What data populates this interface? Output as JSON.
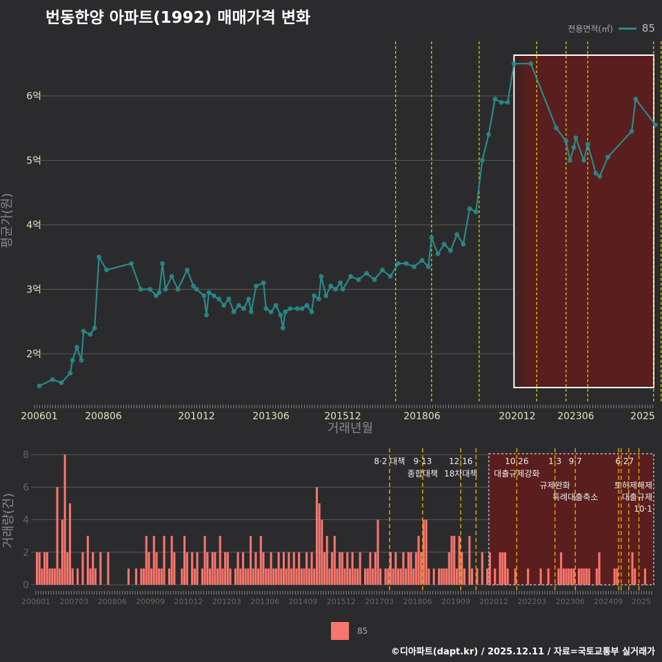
{
  "title": "번동한양 아파트(1992) 매매가격 변화",
  "legend": {
    "title": "전용면적(㎡)",
    "label": "85"
  },
  "footer": "©디아파트(dapt.kr) / 2025.12.11 / 자료=국토교통부 실거래가",
  "colors": {
    "line": "#2a8a8a",
    "bar": "#f8766d",
    "event_top": "#d4d400",
    "event_bottom": "#e6a000",
    "highlight": "#6b1f1f"
  },
  "chart_data": [
    {
      "type": "line",
      "title": "번동한양 아파트(1992) 매매가격 변화",
      "xlabel": "거래년월",
      "ylabel": "평균가(원)",
      "ylim": [
        1.4,
        6.7
      ],
      "yticks": [
        {
          "v": 2,
          "label": "2억"
        },
        {
          "v": 3,
          "label": "3억"
        },
        {
          "v": 4,
          "label": "4억"
        },
        {
          "v": 5,
          "label": "5억"
        },
        {
          "v": 6,
          "label": "6억"
        }
      ],
      "xticks": [
        "200601",
        "200806",
        "201012",
        "201306",
        "201512",
        "201806",
        "202012",
        "202306",
        "2025"
      ],
      "series": [
        {
          "name": "85",
          "x": [
            "200601",
            "200607",
            "200611",
            "200703",
            "200704",
            "200706",
            "200708",
            "200709",
            "200712",
            "200802",
            "200804",
            "200807",
            "200903",
            "200906",
            "200909",
            "200911",
            "200912",
            "201001",
            "201002",
            "201004",
            "201006",
            "201009",
            "201011",
            "201012",
            "201103",
            "201104",
            "201105",
            "201107",
            "201109",
            "201111",
            "201201",
            "201203",
            "201205",
            "201207",
            "201209",
            "201210",
            "201212",
            "201303",
            "201304",
            "201306",
            "201308",
            "201310",
            "201311",
            "201312",
            "201402",
            "201405",
            "201407",
            "201409",
            "201411",
            "201412",
            "201502",
            "201503",
            "201505",
            "201507",
            "201509",
            "201511",
            "201512",
            "201603",
            "201606",
            "201609",
            "201612",
            "201703",
            "201706",
            "201709",
            "201712",
            "201803",
            "201806",
            "201808",
            "201809",
            "201811",
            "201901",
            "201903",
            "201905",
            "201907",
            "201909",
            "201911",
            "202001",
            "202003",
            "202005",
            "202007",
            "202009",
            "202011",
            "202107",
            "202208",
            "202301",
            "202303",
            "202305",
            "202306",
            "202308",
            "202309",
            "202311",
            "202312",
            "202402",
            "202408",
            "202409",
            "202503"
          ],
          "values": [
            1.5,
            1.6,
            1.55,
            1.7,
            1.9,
            2.1,
            1.9,
            2.35,
            2.3,
            2.4,
            3.5,
            3.3,
            3.4,
            3.0,
            3.0,
            2.9,
            2.95,
            3.4,
            3.0,
            3.2,
            3.0,
            3.3,
            3.05,
            3.0,
            2.9,
            2.6,
            2.95,
            2.9,
            2.85,
            2.75,
            2.85,
            2.65,
            2.75,
            2.7,
            2.85,
            2.65,
            3.05,
            3.1,
            2.7,
            2.65,
            2.75,
            2.6,
            2.4,
            2.65,
            2.7,
            2.7,
            2.7,
            2.75,
            2.65,
            2.9,
            2.85,
            3.2,
            2.9,
            3.05,
            3.0,
            3.1,
            3.0,
            3.2,
            3.15,
            3.25,
            3.15,
            3.3,
            3.2,
            3.4,
            3.4,
            3.35,
            3.45,
            3.35,
            3.8,
            3.55,
            3.7,
            3.6,
            3.85,
            3.7,
            4.25,
            4.2,
            5.0,
            5.4,
            5.95,
            5.9,
            5.9,
            6.5,
            6.5,
            5.5,
            5.3,
            5.0,
            5.2,
            5.35,
            5.0,
            5.25,
            4.8,
            4.75,
            5.05,
            5.45,
            5.95,
            5.55
          ]
        }
      ],
      "highlight": {
        "from": "202011",
        "to": "202512"
      },
      "events": [
        "201708",
        "201809",
        "201912",
        "202110",
        "202301",
        "202309",
        "202502",
        "202506",
        "202510"
      ]
    },
    {
      "type": "bar",
      "ylabel": "거래량(건)",
      "ylim": [
        0,
        8
      ],
      "yticks": [
        0,
        2,
        4,
        6,
        8
      ],
      "start": "200601",
      "xticks": [
        "200601",
        "200703",
        "200806",
        "200909",
        "201012",
        "201203",
        "201306",
        "201409",
        "201512",
        "201703",
        "201806",
        "201909",
        "202012",
        "202203",
        "202306",
        "202409",
        "2025"
      ],
      "series": [
        {
          "name": "85",
          "values": [
            2,
            2,
            1,
            2,
            2,
            1,
            1,
            1,
            6,
            1,
            4,
            8,
            2,
            5,
            1,
            0,
            1,
            0,
            2,
            0,
            3,
            1,
            2,
            1,
            0,
            2,
            0,
            0,
            2,
            0,
            0,
            0,
            0,
            0,
            0,
            0,
            1,
            0,
            0,
            1,
            0,
            1,
            1,
            3,
            2,
            1,
            3,
            2,
            1,
            1,
            3,
            0,
            1,
            3,
            2,
            0,
            0,
            1,
            3,
            2,
            0,
            2,
            1,
            2,
            0,
            1,
            3,
            2,
            1,
            2,
            2,
            1,
            3,
            1,
            2,
            2,
            1,
            0,
            1,
            2,
            1,
            2,
            1,
            1,
            3,
            1,
            2,
            1,
            3,
            2,
            1,
            1,
            2,
            1,
            1,
            2,
            1,
            2,
            1,
            2,
            1,
            2,
            1,
            2,
            1,
            1,
            2,
            1,
            2,
            1,
            6,
            5,
            4,
            2,
            3,
            1,
            2,
            3,
            1,
            2,
            2,
            1,
            2,
            1,
            2,
            1,
            1,
            2,
            0,
            1,
            1,
            2,
            1,
            2,
            4,
            1,
            0,
            1,
            1,
            2,
            1,
            2,
            1,
            1,
            2,
            1,
            2,
            2,
            1,
            2,
            3,
            2,
            4,
            4,
            1,
            0,
            1,
            0,
            1,
            1,
            1,
            1,
            2,
            3,
            3,
            1,
            3,
            2,
            1,
            0,
            3,
            1,
            0,
            1,
            0,
            2,
            0,
            1,
            2,
            0,
            1,
            0,
            2,
            2,
            2,
            1,
            0,
            0,
            1,
            0,
            0,
            0,
            0,
            1,
            0,
            0,
            0,
            0,
            1,
            0,
            0,
            1,
            0,
            0,
            0,
            1,
            2,
            1,
            1,
            1,
            1,
            1,
            0,
            1,
            1,
            1,
            1,
            1,
            0,
            0,
            1,
            2,
            0,
            0,
            0,
            0,
            0,
            1,
            1,
            0,
            0,
            0,
            0,
            0,
            2,
            1,
            0,
            0,
            0,
            1
          ]
        }
      ],
      "highlight": {
        "from": "202011",
        "to": "202512"
      },
      "events": [
        {
          "month": "201708",
          "date": "8·2 대책",
          "name": ""
        },
        {
          "month": "201809",
          "date": "9·13",
          "name": "종합대책"
        },
        {
          "month": "201912",
          "date": "12·16",
          "name": "18차대책"
        },
        {
          "month": "202006",
          "date": "",
          "name": ""
        },
        {
          "month": "202110",
          "date": "10·26",
          "name": "대출규제강화"
        },
        {
          "month": "202301",
          "date": "1·3",
          "name": "규제완화"
        },
        {
          "month": "202309",
          "date": "9·7",
          "name": "특례대출축소"
        },
        {
          "month": "202502",
          "date": "",
          "name": "토허제해제"
        },
        {
          "month": "202503",
          "date": "",
          "name": ""
        },
        {
          "month": "202506",
          "date": "6·27",
          "name": "대출규제"
        },
        {
          "month": "202510",
          "date": "10·1",
          "name": ""
        }
      ]
    }
  ]
}
